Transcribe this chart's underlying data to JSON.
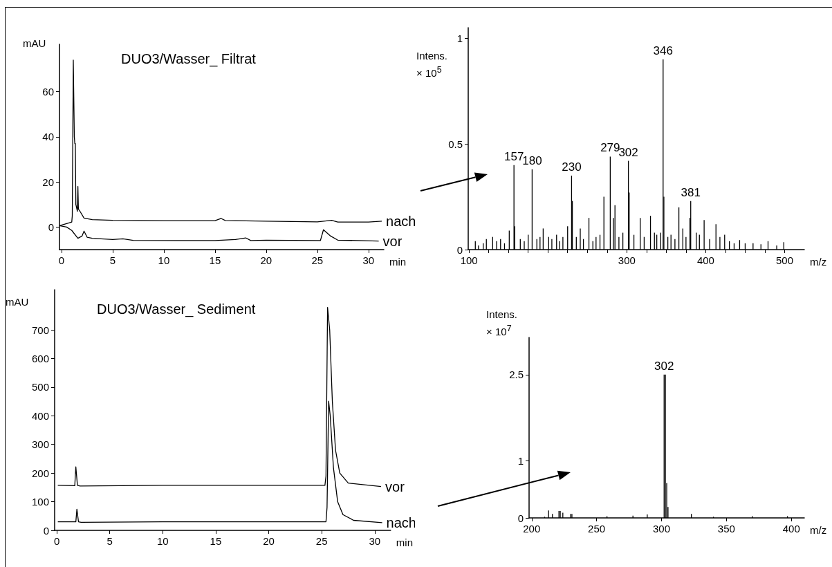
{
  "chart_data": [
    {
      "type": "line",
      "title": "DUO3/Wasser_ Filtrat",
      "xlabel": "min",
      "ylabel": "mAU",
      "xlim": [
        -0.2,
        31.5
      ],
      "xticks": [
        0,
        5,
        10,
        15,
        20,
        25,
        30
      ],
      "ylim": [
        -10,
        81
      ],
      "yticks": [
        0,
        20,
        40,
        60
      ],
      "marker": "none",
      "series": [
        {
          "name": "nach",
          "color": "#000000",
          "x": [
            -0.2,
            0.5,
            1.0,
            1.05,
            1.15,
            1.25,
            1.3,
            1.35,
            1.4,
            1.55,
            1.6,
            1.65,
            1.8,
            2.2,
            3,
            5,
            10,
            15,
            15.6,
            16,
            20,
            25,
            26.4,
            27,
            30,
            31.3
          ],
          "values": [
            0.6,
            1.5,
            2.2,
            5,
            74,
            40,
            37,
            37,
            10,
            7,
            18,
            8,
            7,
            4,
            3.3,
            3,
            2.8,
            2.8,
            3.8,
            2.9,
            2.6,
            2.3,
            3,
            2.2,
            2.2,
            2.6
          ]
        },
        {
          "name": "vor",
          "color": "#000000",
          "x": [
            -0.2,
            0.5,
            1,
            1.6,
            2.0,
            2.2,
            2.5,
            3,
            5,
            6,
            7,
            15,
            17,
            18,
            18.5,
            20,
            25.3,
            25.6,
            26.3,
            27,
            31
          ],
          "values": [
            0.6,
            0,
            -1.5,
            -5,
            -4,
            -1.8,
            -4.5,
            -5,
            -5.5,
            -5.2,
            -5.9,
            -6,
            -5.5,
            -4.8,
            -6,
            -5.8,
            -6,
            -1.2,
            -4,
            -5.8,
            -6.2
          ]
        }
      ]
    },
    {
      "type": "bar",
      "ylabel": "Intens. × 10$^{5}$",
      "xlabel": "m/z",
      "xlim": [
        99,
        525
      ],
      "xticks": [
        100,
        {
          "value": 125,
          "label": null
        },
        {
          "value": 150,
          "label": null
        },
        {
          "value": 175,
          "label": null
        },
        {
          "value": 200,
          "label": null
        },
        {
          "value": 225,
          "label": null
        },
        {
          "value": 250,
          "label": null
        },
        {
          "value": 275,
          "label": null
        },
        300,
        {
          "value": 325,
          "label": null
        },
        {
          "value": 350,
          "label": null
        },
        {
          "value": 375,
          "label": null
        },
        400,
        {
          "value": 425,
          "label": null
        },
        {
          "value": 450,
          "label": null
        },
        {
          "value": 475,
          "label": null
        },
        500
      ],
      "ylim": [
        0,
        1.05
      ],
      "yticks": [
        0,
        0.5,
        1
      ],
      "color": "#000000",
      "x": [
        108,
        112,
        118,
        122,
        130,
        135,
        140,
        145,
        151,
        157,
        158,
        165,
        170,
        175,
        180,
        186,
        190,
        194,
        201,
        205,
        211,
        215,
        219,
        225,
        230,
        231,
        236,
        241,
        245,
        252,
        257,
        261,
        266,
        271,
        279,
        283,
        285,
        290,
        295,
        302,
        303,
        309,
        317,
        322,
        330,
        335,
        338,
        343,
        346,
        347,
        352,
        356,
        361,
        366,
        371,
        375,
        380,
        381,
        388,
        392,
        398,
        405,
        413,
        418,
        424,
        430,
        436,
        443,
        450,
        460,
        470,
        479,
        490,
        499
      ],
      "values": [
        0.04,
        0.02,
        0.03,
        0.05,
        0.06,
        0.04,
        0.05,
        0.03,
        0.09,
        0.4,
        0.11,
        0.05,
        0.04,
        0.07,
        0.38,
        0.05,
        0.06,
        0.1,
        0.06,
        0.05,
        0.07,
        0.04,
        0.06,
        0.11,
        0.35,
        0.23,
        0.06,
        0.1,
        0.05,
        0.15,
        0.04,
        0.06,
        0.07,
        0.25,
        0.44,
        0.15,
        0.21,
        0.06,
        0.08,
        0.42,
        0.27,
        0.07,
        0.15,
        0.06,
        0.16,
        0.08,
        0.07,
        0.08,
        0.9,
        0.25,
        0.06,
        0.07,
        0.05,
        0.2,
        0.1,
        0.06,
        0.15,
        0.23,
        0.08,
        0.07,
        0.14,
        0.05,
        0.12,
        0.06,
        0.07,
        0.04,
        0.03,
        0.045,
        0.03,
        0.03,
        0.025,
        0.04,
        0.02,
        0.035
      ],
      "annotations": [
        {
          "text": "157",
          "x": 157,
          "y": 0.4
        },
        {
          "text": "180",
          "x": 180,
          "y": 0.38
        },
        {
          "text": "230",
          "x": 230,
          "y": 0.35
        },
        {
          "text": "279",
          "x": 279,
          "y": 0.44
        },
        {
          "text": "302",
          "x": 302,
          "y": 0.42
        },
        {
          "text": "346",
          "x": 346,
          "y": 0.9
        },
        {
          "text": "381",
          "x": 381,
          "y": 0.23
        }
      ]
    },
    {
      "type": "line",
      "title": "DUO3/Wasser_ Sediment",
      "xlabel": "min",
      "ylabel": "mAU",
      "xlim": [
        -0.2,
        31.5
      ],
      "xticks": [
        0,
        5,
        10,
        15,
        20,
        25,
        30
      ],
      "ylim": [
        0,
        840
      ],
      "yticks": [
        0,
        100,
        200,
        300,
        400,
        500,
        600,
        700
      ],
      "marker": "none",
      "series": [
        {
          "name": "vor",
          "color": "#000000",
          "x": [
            0.1,
            1.7,
            1.8,
            1.95,
            2.2,
            10,
            25.3,
            25.4,
            25.55,
            25.75,
            26,
            26.3,
            26.7,
            27.5,
            30.6
          ],
          "values": [
            157,
            156,
            222,
            157,
            155,
            157,
            157,
            190,
            778,
            700,
            450,
            280,
            200,
            165,
            153
          ]
        },
        {
          "name": "nach",
          "color": "#000000",
          "x": [
            0.1,
            1.8,
            1.9,
            2.05,
            2.3,
            10,
            25.4,
            25.5,
            25.65,
            25.8,
            26.1,
            26.5,
            27,
            28,
            30.7
          ],
          "values": [
            30,
            30,
            74,
            30,
            28,
            30,
            30,
            80,
            451,
            400,
            220,
            100,
            55,
            35,
            27
          ]
        }
      ]
    },
    {
      "type": "bar",
      "ylabel": "Intens. × 10$^{7}$",
      "xlabel": "m/z",
      "xlim": [
        198,
        410
      ],
      "xticks": [
        200,
        250,
        300,
        350,
        400
      ],
      "ylim": [
        0,
        3.15
      ],
      "yticks": [
        0,
        1,
        2.5
      ],
      "color": "#000000",
      "x": [
        210,
        213,
        216,
        221,
        222,
        224,
        230,
        231,
        258,
        278,
        289,
        302,
        303,
        304,
        305,
        323,
        340,
        370,
        397
      ],
      "values": [
        0.02,
        0.13,
        0.07,
        0.12,
        0.12,
        0.09,
        0.07,
        0.07,
        0.03,
        0.04,
        0.06,
        2.5,
        2.5,
        0.61,
        0.19,
        0.07,
        0.02,
        0.03,
        0.03
      ],
      "annotations": [
        {
          "text": "302",
          "x": 302,
          "y": 2.5
        }
      ]
    }
  ]
}
